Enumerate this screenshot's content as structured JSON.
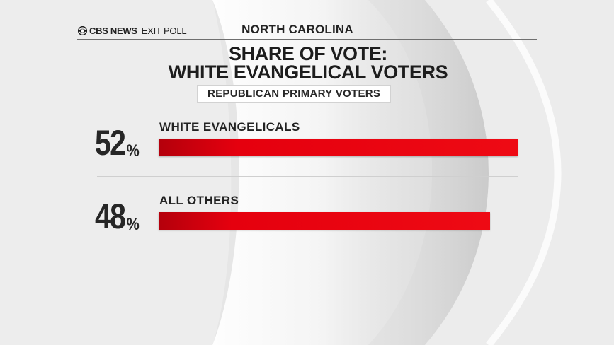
{
  "header": {
    "brand_name": "CBS NEWS",
    "brand_tag": "EXIT POLL",
    "region": "NORTH CAROLINA"
  },
  "chart_data": {
    "type": "bar",
    "orientation": "horizontal",
    "title": "SHARE OF VOTE:",
    "title_line2": "WHITE EVANGELICAL VOTERS",
    "subtitle": "REPUBLICAN PRIMARY VOTERS",
    "categories": [
      "WHITE EVANGELICALS",
      "ALL OTHERS"
    ],
    "values": [
      52,
      48
    ],
    "value_labels": [
      "52",
      "48"
    ],
    "unit": "%",
    "bar_color": "#e5000e",
    "xlabel": "",
    "ylabel": "",
    "grid": false,
    "legend": "none"
  }
}
